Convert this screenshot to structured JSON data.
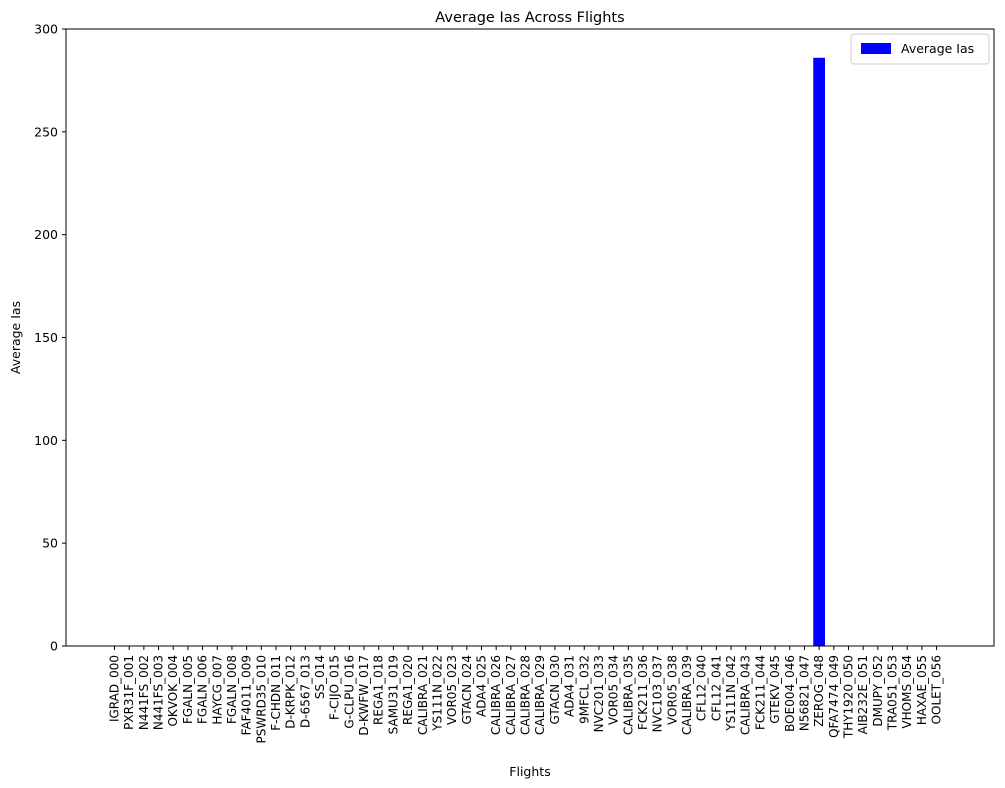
{
  "chart_data": {
    "type": "bar",
    "title": "Average Ias Across Flights",
    "xlabel": "Flights",
    "ylabel": "Average Ias",
    "ylim": [
      0,
      300
    ],
    "yticks": [
      0,
      50,
      100,
      150,
      200,
      250,
      300
    ],
    "grid": false,
    "legend_position": "top-right",
    "bar_color": "#0000ff",
    "categories": [
      "IGRAD_000",
      "PXR31F_001",
      "N441FS_002",
      "N441FS_003",
      "OKVOK_004",
      "FGALN_005",
      "FGALN_006",
      "HAYCG_007",
      "FGALN_008",
      "FAF4011_009",
      "PSWRD35_010",
      "F-CHDN_011",
      "D-KRPK_012",
      "D-6567_013",
      "SS_014",
      "F-CIJO_015",
      "G-CLPU_016",
      "D-KWFW_017",
      "REGA1_018",
      "SAMU31_019",
      "REGA1_020",
      "CALIBRA_021",
      "YS111N_022",
      "VOR05_023",
      "GTACN_024",
      "ADA4_025",
      "CALIBRA_026",
      "CALIBRA_027",
      "CALIBRA_028",
      "CALIBRA_029",
      "GTACN_030",
      "ADA4_031",
      "9MFCL_032",
      "NVC201_033",
      "VOR05_034",
      "CALIBRA_035",
      "FCK211_036",
      "NVC103_037",
      "VOR05_038",
      "CALIBRA_039",
      "CFL12_040",
      "CFL12_041",
      "YS111N_042",
      "CALIBRA_043",
      "FCK211_044",
      "GTEKV_045",
      "BOE004_046",
      "N56821_047",
      "ZEROG_048",
      "QFA7474_049",
      "THY1920_050",
      "AIB232E_051",
      "DMUPY_052",
      "TRA051_053",
      "VHOMS_054",
      "HAXAE_055",
      "OOLET_056"
    ],
    "series": [
      {
        "name": "Average Ias",
        "values": [
          0,
          0,
          0,
          0,
          0,
          0,
          0,
          0,
          0,
          0,
          0,
          0,
          0,
          0,
          0,
          0,
          0,
          0,
          0,
          0,
          0,
          0,
          0,
          0,
          0,
          0,
          0,
          0,
          0,
          0,
          0,
          0,
          0,
          0,
          0,
          0,
          0,
          0,
          0,
          0,
          0,
          0,
          0,
          0,
          0,
          0,
          0,
          0,
          286,
          0,
          0,
          0,
          0,
          0,
          0,
          0,
          0
        ]
      }
    ]
  }
}
